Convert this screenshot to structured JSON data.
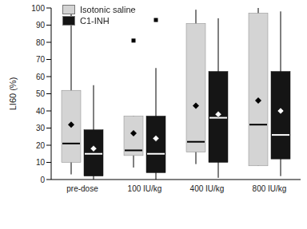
{
  "chart_data": {
    "type": "box",
    "y_label": "LI60 (%)",
    "categories": [
      "pre-dose",
      "100 IU/kg",
      "400 IU/kg",
      "800 IU/kg"
    ],
    "ylim": [
      0,
      100
    ],
    "yticks": [
      0,
      10,
      20,
      30,
      40,
      50,
      60,
      70,
      80,
      90,
      100
    ],
    "legend": "upper left",
    "series": [
      {
        "name": "Isotonic saline",
        "color": "#d4d4d4",
        "values": [
          {
            "min": 3,
            "q1": 10,
            "median": 21,
            "q3": 52,
            "max": 99,
            "mean": 32,
            "outliers": []
          },
          {
            "min": 7,
            "q1": 14,
            "median": 17,
            "q3": 37,
            "max": 37,
            "mean": 27,
            "outliers": [
              81
            ]
          },
          {
            "min": 9,
            "q1": 16,
            "median": 22,
            "q3": 91,
            "max": 99,
            "mean": 43,
            "outliers": []
          },
          {
            "min": 8,
            "q1": 8,
            "median": 32,
            "q3": 97,
            "max": 100,
            "mean": 46,
            "outliers": []
          }
        ]
      },
      {
        "name": "C1-INH",
        "color": "#151515",
        "values": [
          {
            "min": 0,
            "q1": 2,
            "median": 15,
            "q3": 29,
            "max": 55,
            "mean": 18,
            "outliers": []
          },
          {
            "min": 0,
            "q1": 4,
            "median": 15,
            "q3": 37,
            "max": 65,
            "mean": 24,
            "outliers": [
              93
            ]
          },
          {
            "min": 1,
            "q1": 10,
            "median": 36,
            "q3": 63,
            "max": 94,
            "mean": 38,
            "outliers": []
          },
          {
            "min": 2,
            "q1": 12,
            "median": 26,
            "q3": 63,
            "max": 98,
            "mean": 40,
            "outliers": []
          }
        ]
      }
    ]
  }
}
